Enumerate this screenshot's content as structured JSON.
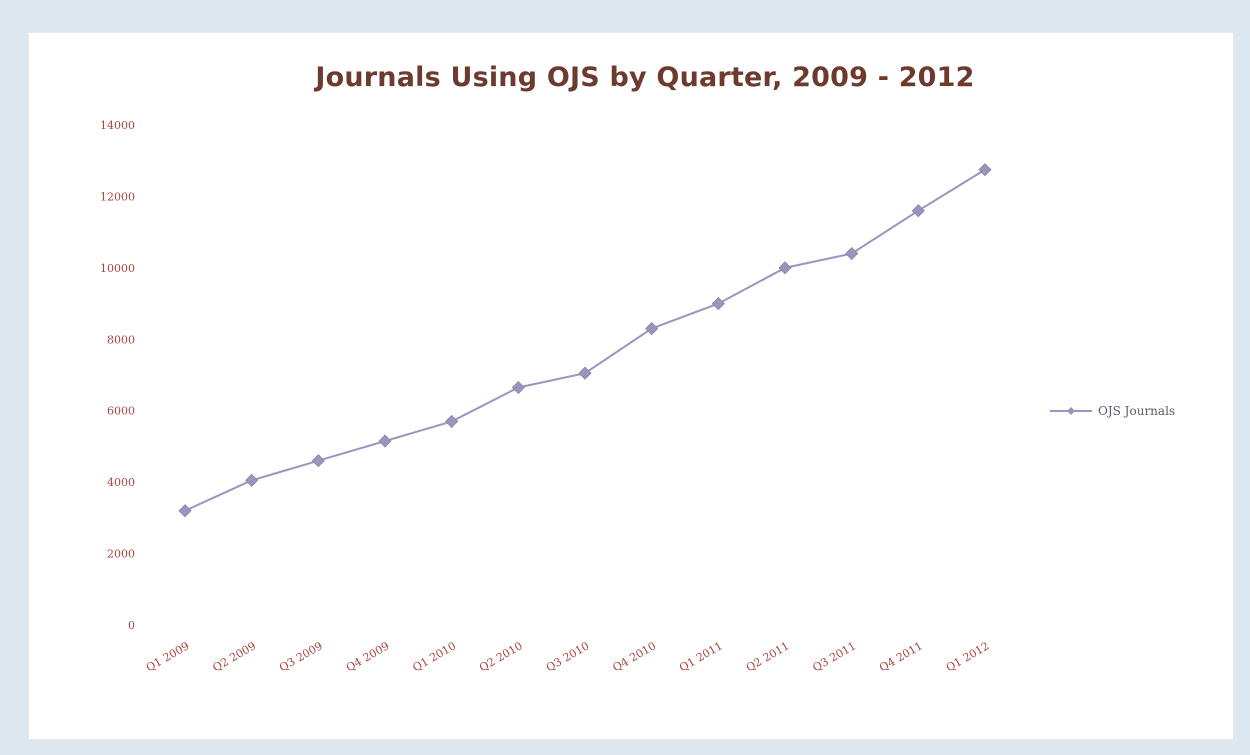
{
  "chart_data": {
    "type": "line",
    "title": "Journals Using OJS by Quarter, 2009 - 2012",
    "xlabel": "",
    "ylabel": "",
    "ylim": [
      0,
      14000
    ],
    "y_ticks": [
      "0",
      "2000",
      "4000",
      "6000",
      "8000",
      "10000",
      "12000",
      "14000"
    ],
    "categories": [
      "Q1 2009",
      "Q2 2009",
      "Q3 2009",
      "Q4 2009",
      "Q1 2010",
      "Q2 2010",
      "Q3 2010",
      "Q4 2010",
      "Q1 2011",
      "Q2 2011",
      "Q3 2011",
      "Q4 2011",
      "Q1 2012"
    ],
    "series": [
      {
        "name": "OJS Journals",
        "values": [
          3200,
          4050,
          4600,
          5150,
          5700,
          6650,
          7050,
          8300,
          9000,
          10000,
          10400,
          11600,
          12750
        ]
      }
    ],
    "grid": false,
    "legend_position": "right",
    "colors": {
      "line": "#9c94bd",
      "marker": "#9c94bd",
      "axis_text": "#a8453d",
      "title": "#6e3a2e"
    }
  }
}
